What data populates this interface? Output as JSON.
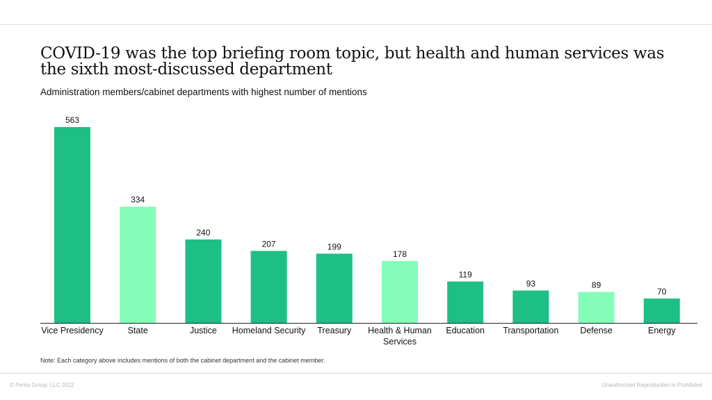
{
  "title": "COVID-19 was the top briefing room topic, but health and human services was the sixth most-discussed department",
  "subtitle": "Administration members/cabinet departments with highest number of mentions",
  "note": "Note: Each category above includes mentions of both the cabinet department and the cabinet member.",
  "footer": {
    "copyright": "© Penta Group, LLC 2022",
    "notice": "Unauthorized Reproduction Is Prohibited"
  },
  "colors": {
    "dark_green": "#1dbf85",
    "light_green": "#84fdb9",
    "axis": "#222222",
    "rule": "#d9d9d9"
  },
  "chart_data": {
    "type": "bar",
    "title": "COVID-19 was the top briefing room topic, but health and human services was the sixth most-discussed department",
    "subtitle": "Administration members/cabinet departments with highest number of mentions",
    "categories": [
      "Vice Presidency",
      "State",
      "Justice",
      "Homeland Security",
      "Treasury",
      "Health & Human Services",
      "Education",
      "Transportation",
      "Defense",
      "Energy"
    ],
    "category_lines": [
      [
        "Vice Presidency"
      ],
      [
        "State"
      ],
      [
        "Justice"
      ],
      [
        "Homeland Security"
      ],
      [
        "Treasury"
      ],
      [
        "Health & Human",
        "Services"
      ],
      [
        "Education"
      ],
      [
        "Transportation"
      ],
      [
        "Defense"
      ],
      [
        "Energy"
      ]
    ],
    "values": [
      563,
      334,
      240,
      207,
      199,
      178,
      119,
      93,
      89,
      70
    ],
    "bar_colors": [
      "#1dbf85",
      "#84fdb9",
      "#1dbf85",
      "#1dbf85",
      "#1dbf85",
      "#84fdb9",
      "#1dbf85",
      "#1dbf85",
      "#84fdb9",
      "#1dbf85"
    ],
    "data_labels": true,
    "ylim": [
      0,
      563
    ],
    "grid": false,
    "xlabel": "",
    "ylabel": ""
  }
}
